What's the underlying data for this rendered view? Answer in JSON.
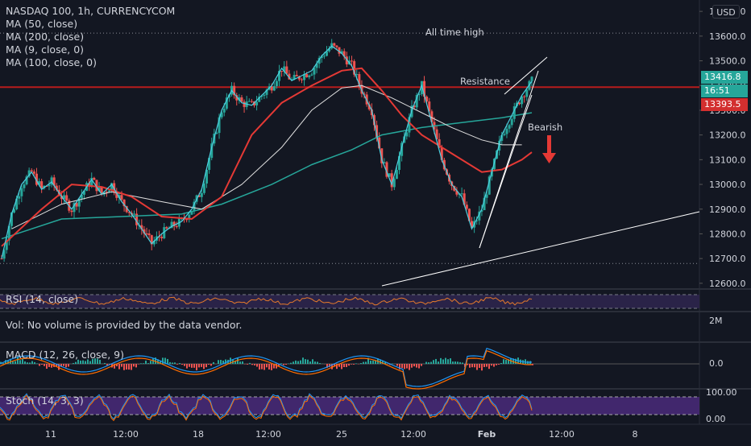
{
  "header": {
    "title": "NASDAQ 100, 1h, CURRENCYCOM",
    "indicators": [
      "MA (50, close)",
      "MA (200, close)",
      "MA (9, close, 0)",
      "MA (100, close, 0)"
    ]
  },
  "currency_button": "USD",
  "price_badges": {
    "last": "13416.8",
    "countdown": "16:51",
    "resistance": "13393.5"
  },
  "annotations": {
    "all_time_high": "All time high",
    "resistance": "Resistance",
    "bearish": "Bearish"
  },
  "panes": {
    "rsi": "RSI (14, close)",
    "volume": "Vol: No volume is provided by the data vendor.",
    "volume_axis": "2M",
    "macd": "MACD (12, 26, close, 9)",
    "macd_axis": "0.0",
    "stoch": "Stoch (14, 3, 3)",
    "stoch_axis_top": "100.00",
    "stoch_axis_bottom": "0.00"
  },
  "colors": {
    "background": "#131722",
    "up": "#26a69a",
    "down": "#ef5350",
    "ma50": "#e53935",
    "ma200": "#26a69a",
    "ma9": "#4dd0e1",
    "ma100": "#e0e0e0",
    "resistance_line": "#b71c1c",
    "macd_line": "#2196f3",
    "signal_line": "#ff6d00",
    "stoch_band": "#4a2a7a"
  },
  "chart_data": {
    "type": "candlestick",
    "y_ticks": [
      "13700.0",
      "13600.0",
      "13500.0",
      "13400.0",
      "13300.0",
      "13200.0",
      "13100.0",
      "13000.0",
      "12900.0",
      "12800.0",
      "12700.0",
      "12600.0"
    ],
    "x_ticks": [
      "11",
      "12:00",
      "18",
      "12:00",
      "25",
      "12:00",
      "Feb",
      "12:00",
      "8"
    ],
    "ylim": [
      12580,
      13720
    ],
    "resistance_level": 13393.5,
    "all_time_high_level": 13612,
    "close_path": [
      [
        0,
        12700
      ],
      [
        2,
        12880
      ],
      [
        4,
        13000
      ],
      [
        6,
        13050
      ],
      [
        8,
        12980
      ],
      [
        10,
        13010
      ],
      [
        12,
        12950
      ],
      [
        14,
        12900
      ],
      [
        16,
        12960
      ],
      [
        18,
        13020
      ],
      [
        20,
        12960
      ],
      [
        22,
        13000
      ],
      [
        24,
        12930
      ],
      [
        26,
        12880
      ],
      [
        28,
        12820
      ],
      [
        30,
        12760
      ],
      [
        32,
        12800
      ],
      [
        34,
        12830
      ],
      [
        36,
        12850
      ],
      [
        38,
        12900
      ],
      [
        40,
        12980
      ],
      [
        42,
        13150
      ],
      [
        44,
        13300
      ],
      [
        46,
        13380
      ],
      [
        48,
        13330
      ],
      [
        50,
        13320
      ],
      [
        52,
        13360
      ],
      [
        54,
        13400
      ],
      [
        56,
        13470
      ],
      [
        58,
        13420
      ],
      [
        60,
        13440
      ],
      [
        62,
        13460
      ],
      [
        64,
        13520
      ],
      [
        66,
        13560
      ],
      [
        68,
        13530
      ],
      [
        70,
        13480
      ],
      [
        72,
        13380
      ],
      [
        74,
        13300
      ],
      [
        76,
        13100
      ],
      [
        78,
        13000
      ],
      [
        80,
        13150
      ],
      [
        82,
        13300
      ],
      [
        84,
        13400
      ],
      [
        86,
        13250
      ],
      [
        88,
        13100
      ],
      [
        90,
        13000
      ],
      [
        92,
        12950
      ],
      [
        94,
        12820
      ],
      [
        96,
        12900
      ],
      [
        98,
        13050
      ],
      [
        100,
        13200
      ],
      [
        102,
        13280
      ],
      [
        104,
        13360
      ],
      [
        106,
        13417
      ]
    ],
    "ma50": [
      [
        0,
        12750
      ],
      [
        8,
        12900
      ],
      [
        14,
        13000
      ],
      [
        20,
        12990
      ],
      [
        26,
        12950
      ],
      [
        32,
        12870
      ],
      [
        38,
        12860
      ],
      [
        44,
        12950
      ],
      [
        50,
        13200
      ],
      [
        56,
        13330
      ],
      [
        62,
        13400
      ],
      [
        68,
        13460
      ],
      [
        72,
        13470
      ],
      [
        76,
        13380
      ],
      [
        80,
        13280
      ],
      [
        84,
        13200
      ],
      [
        88,
        13150
      ],
      [
        92,
        13100
      ],
      [
        96,
        13050
      ],
      [
        100,
        13060
      ],
      [
        104,
        13100
      ],
      [
        106,
        13130
      ]
    ],
    "ma200": [
      [
        0,
        12780
      ],
      [
        12,
        12860
      ],
      [
        24,
        12870
      ],
      [
        36,
        12880
      ],
      [
        44,
        12920
      ],
      [
        54,
        13000
      ],
      [
        62,
        13080
      ],
      [
        70,
        13140
      ],
      [
        76,
        13200
      ],
      [
        84,
        13230
      ],
      [
        92,
        13250
      ],
      [
        100,
        13270
      ],
      [
        106,
        13290
      ]
    ],
    "ma100": [
      [
        2,
        12820
      ],
      [
        12,
        12920
      ],
      [
        22,
        12970
      ],
      [
        32,
        12930
      ],
      [
        40,
        12900
      ],
      [
        48,
        13000
      ],
      [
        56,
        13150
      ],
      [
        62,
        13300
      ],
      [
        68,
        13390
      ],
      [
        72,
        13400
      ],
      [
        78,
        13350
      ],
      [
        84,
        13290
      ],
      [
        90,
        13230
      ],
      [
        96,
        13180
      ],
      [
        100,
        13160
      ],
      [
        104,
        13160
      ]
    ]
  }
}
